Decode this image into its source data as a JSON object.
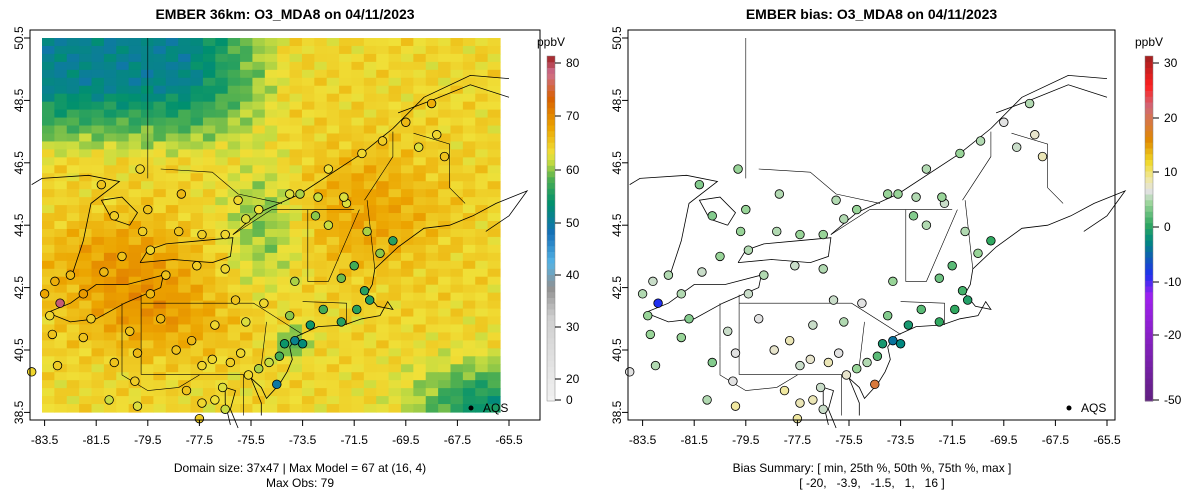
{
  "panels": [
    {
      "title": "EMBER 36km: O3_MDA8 on 04/11/2023",
      "caption_line1": "Domain size: 37x47 | Max Model = 67 at (16, 4)",
      "caption_line2": "Max Obs: 79",
      "legend_unit": "ppbV",
      "legend_ticks": [
        "0",
        "20",
        "30",
        "40",
        "50",
        "60",
        "70",
        "80"
      ],
      "legend_tick_values": [
        0,
        20,
        30,
        40,
        50,
        60,
        70,
        80
      ],
      "legend_range": [
        0,
        82
      ],
      "marker_label": "AQS"
    },
    {
      "title": "EMBER bias: O3_MDA8 on 04/11/2023",
      "caption_line1": "Bias Summary: [ min, 25th %, 50th %, 75th %, max ]",
      "caption_line2": "[ -20,   -3.9,   -1.5,   1,   16 ]",
      "legend_unit": "ppbV",
      "legend_ticks": [
        "-50",
        "-20",
        "-10",
        "0",
        "10",
        "20",
        "30"
      ],
      "legend_tick_values": [
        -50,
        -20,
        -10,
        0,
        10,
        20,
        30
      ],
      "legend_range": [
        -50,
        32
      ],
      "marker_label": "AQS"
    }
  ],
  "axes": {
    "lon_ticks": [
      "-83.5",
      "-81.5",
      "-79.5",
      "-77.5",
      "-75.5",
      "-73.5",
      "-71.5",
      "-69.5",
      "-67.5",
      "-65.5"
    ],
    "lat_ticks": [
      "38.5",
      "40.5",
      "42.5",
      "44.5",
      "46.5",
      "48.5",
      "50.5"
    ]
  },
  "colors": {
    "model_scale": [
      [
        0,
        "#f2f2f2"
      ],
      [
        20,
        "#cfcfcf"
      ],
      [
        27,
        "#909090"
      ],
      [
        33,
        "#55b4e6"
      ],
      [
        40,
        "#1470b8"
      ],
      [
        47,
        "#00906e"
      ],
      [
        53,
        "#50b050"
      ],
      [
        57,
        "#c8dc40"
      ],
      [
        59,
        "#f0e038"
      ],
      [
        65,
        "#eca400"
      ],
      [
        72,
        "#d86000"
      ],
      [
        78,
        "#d07090"
      ],
      [
        82,
        "#a02020"
      ]
    ],
    "bias_scale": [
      [
        -50,
        "#602080"
      ],
      [
        -25,
        "#a020f0"
      ],
      [
        -20,
        "#2030f0"
      ],
      [
        -12,
        "#008880"
      ],
      [
        -8,
        "#30a860"
      ],
      [
        -3,
        "#98d498"
      ],
      [
        0,
        "#e2e2e2"
      ],
      [
        3,
        "#f0e8a0"
      ],
      [
        7,
        "#f0d828"
      ],
      [
        12,
        "#e08a00"
      ],
      [
        20,
        "#d06878"
      ],
      [
        25,
        "#ff2020"
      ],
      [
        32,
        "#a02020"
      ]
    ]
  },
  "stations": [
    [
      -68.3,
      47.4,
      60,
      1
    ],
    [
      -69.0,
      47.0,
      58,
      -1
    ],
    [
      -68.0,
      46.7,
      62,
      2
    ],
    [
      -70.0,
      44.0,
      50,
      -8
    ],
    [
      -70.5,
      43.6,
      55,
      -3
    ],
    [
      -71.0,
      44.3,
      56,
      -2
    ],
    [
      -71.8,
      45.2,
      58,
      -1
    ],
    [
      -72.5,
      44.5,
      57,
      -2
    ],
    [
      -73.0,
      44.8,
      55,
      -4
    ],
    [
      -71.5,
      43.2,
      52,
      -6
    ],
    [
      -72.0,
      42.8,
      54,
      -5
    ],
    [
      -71.1,
      42.4,
      50,
      -7
    ],
    [
      -70.9,
      42.1,
      49,
      -9
    ],
    [
      -71.4,
      41.8,
      50,
      -8
    ],
    [
      -72.7,
      41.8,
      52,
      -6
    ],
    [
      -73.2,
      41.3,
      48,
      -10
    ],
    [
      -72.0,
      41.4,
      50,
      -8
    ],
    [
      -73.8,
      42.7,
      56,
      -3
    ],
    [
      -74.0,
      41.6,
      55,
      -4
    ],
    [
      -73.8,
      40.8,
      44,
      -14
    ],
    [
      -73.5,
      40.7,
      46,
      -12
    ],
    [
      -74.2,
      40.7,
      48,
      -10
    ],
    [
      -74.4,
      40.3,
      52,
      -6
    ],
    [
      -74.8,
      40.1,
      57,
      -2
    ],
    [
      -74.5,
      39.4,
      42,
      16
    ],
    [
      -75.2,
      39.9,
      56,
      -3
    ],
    [
      -75.6,
      39.7,
      60,
      1
    ],
    [
      -76.6,
      39.3,
      58,
      -1
    ],
    [
      -76.9,
      38.9,
      59,
      2
    ],
    [
      -77.4,
      38.8,
      60,
      2
    ],
    [
      -76.5,
      38.6,
      57,
      -1
    ],
    [
      -77.5,
      38.3,
      61,
      3
    ],
    [
      -78.0,
      39.2,
      62,
      3
    ],
    [
      -77.0,
      40.2,
      60,
      1
    ],
    [
      -76.3,
      40.1,
      61,
      2
    ],
    [
      -75.9,
      40.4,
      60,
      0
    ],
    [
      -77.8,
      40.8,
      63,
      2
    ],
    [
      -78.4,
      40.5,
      62,
      1
    ],
    [
      -79.9,
      40.4,
      63,
      0
    ],
    [
      -80.2,
      41.1,
      62,
      -1
    ],
    [
      -79.0,
      41.5,
      63,
      0
    ],
    [
      -76.9,
      41.3,
      60,
      -1
    ],
    [
      -75.7,
      41.4,
      58,
      -2
    ],
    [
      -75.0,
      42.0,
      60,
      0
    ],
    [
      -76.1,
      42.1,
      62,
      -1
    ],
    [
      -76.5,
      43.1,
      60,
      -2
    ],
    [
      -77.6,
      43.2,
      61,
      -1
    ],
    [
      -78.8,
      42.9,
      62,
      -2
    ],
    [
      -79.4,
      42.3,
      63,
      -1
    ],
    [
      -81.7,
      41.5,
      61,
      -4
    ],
    [
      -82.0,
      40.9,
      62,
      -3
    ],
    [
      -83.0,
      40.0,
      61,
      -2
    ],
    [
      -83.3,
      41.6,
      60,
      -3
    ],
    [
      -83.5,
      42.3,
      65,
      -2
    ],
    [
      -83.1,
      42.7,
      64,
      -1
    ],
    [
      -82.5,
      42.9,
      63,
      -2
    ],
    [
      -81.2,
      43.0,
      63,
      -1
    ],
    [
      -80.5,
      43.5,
      62,
      -3
    ],
    [
      -79.4,
      43.7,
      60,
      -2
    ],
    [
      -79.7,
      44.3,
      61,
      -3
    ],
    [
      -78.3,
      44.3,
      62,
      -2
    ],
    [
      -77.4,
      44.2,
      61,
      -3
    ],
    [
      -76.5,
      44.2,
      60,
      -3
    ],
    [
      -75.7,
      44.7,
      58,
      -2
    ],
    [
      -75.2,
      45.0,
      59,
      -3
    ],
    [
      -76.0,
      45.3,
      60,
      -2
    ],
    [
      -74.0,
      45.5,
      58,
      -3
    ],
    [
      -73.6,
      45.5,
      56,
      -3
    ],
    [
      -72.9,
      45.4,
      57,
      -2
    ],
    [
      -71.9,
      45.4,
      58,
      -3
    ],
    [
      -71.2,
      46.8,
      60,
      -3
    ],
    [
      -72.5,
      46.3,
      59,
      -2
    ],
    [
      -70.4,
      47.2,
      61,
      -2
    ],
    [
      -69.5,
      47.8,
      63,
      0
    ],
    [
      -68.5,
      48.4,
      64,
      -2
    ],
    [
      -80.8,
      44.8,
      61,
      -4
    ],
    [
      -81.3,
      45.8,
      62,
      -4
    ],
    [
      -79.8,
      46.3,
      60,
      -3
    ],
    [
      -78.2,
      45.5,
      63,
      -2
    ],
    [
      -79.5,
      45.0,
      62,
      -3
    ],
    [
      -82.0,
      42.3,
      66,
      -2
    ],
    [
      -83.2,
      41.0,
      62,
      -3
    ],
    [
      -84.0,
      39.8,
      60,
      0
    ],
    [
      -81.0,
      38.9,
      57,
      -2
    ],
    [
      -80.0,
      39.5,
      61,
      0
    ],
    [
      -80.8,
      40.1,
      62,
      -4
    ],
    [
      -82.9,
      42.0,
      79,
      -20
    ],
    [
      -79.9,
      38.7,
      58,
      3
    ],
    [
      -77.4,
      40.0,
      60,
      -1
    ]
  ]
}
